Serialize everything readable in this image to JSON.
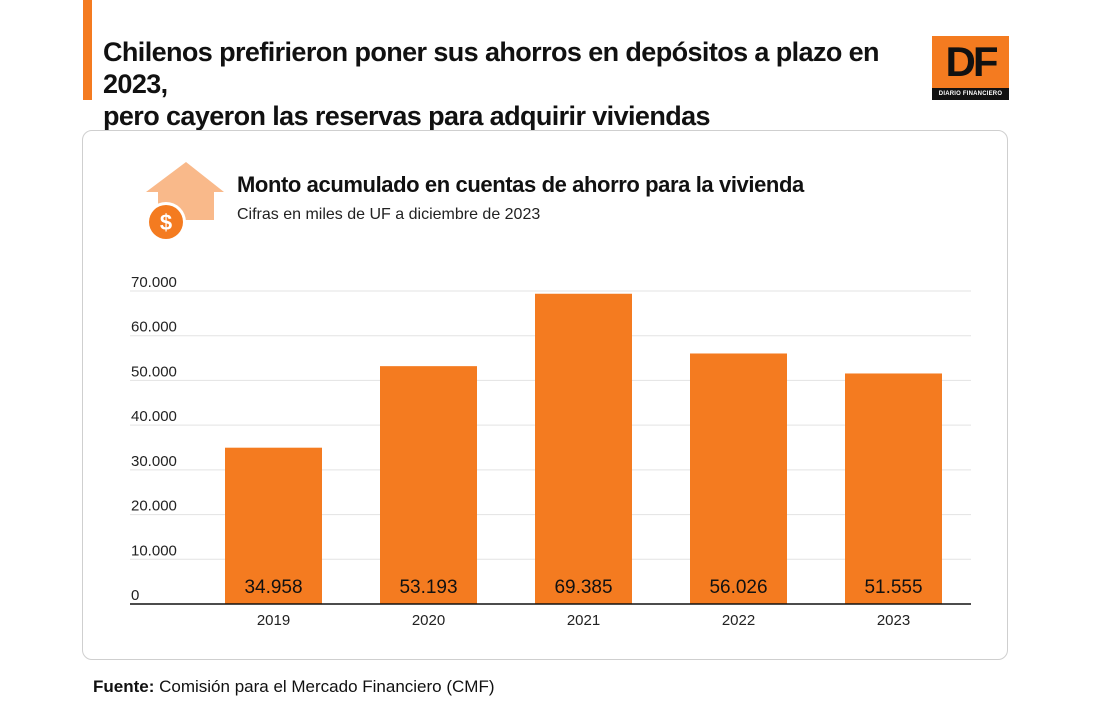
{
  "headline": {
    "line1": "Chilenos prefirieron poner sus ahorros en depósitos a plazo en 2023,",
    "line2": "pero cayeron las reservas para adquirir viviendas"
  },
  "logo": {
    "mark": "DF",
    "tagline": "DIARIO FINANCIERO"
  },
  "icon": {
    "name": "house-dollar-icon"
  },
  "colors": {
    "accent": "#f47b20",
    "icon_light": "#f9b98a",
    "bar_label": "#111111",
    "grid": "#e3e3e3"
  },
  "chart_data": {
    "type": "bar",
    "title": "Monto acumulado en cuentas de ahorro para la vivienda",
    "subtitle": "Cifras en miles de UF a diciembre de 2023",
    "categories": [
      "2019",
      "2020",
      "2021",
      "2022",
      "2023"
    ],
    "values": [
      34958,
      53193,
      69385,
      56026,
      51555
    ],
    "value_labels": [
      "34.958",
      "53.193",
      "69.385",
      "56.026",
      "51.555"
    ],
    "yticks": [
      0,
      10000,
      20000,
      30000,
      40000,
      50000,
      60000,
      70000
    ],
    "ytick_labels": [
      "0",
      "10.000",
      "20.000",
      "30.000",
      "40.000",
      "50.000",
      "60.000",
      "70.000"
    ],
    "ylim": [
      0,
      70000
    ],
    "grid": true,
    "legend": "none"
  },
  "source": {
    "label": "Fuente:",
    "text": " Comisión para el Mercado Financiero (CMF)"
  }
}
